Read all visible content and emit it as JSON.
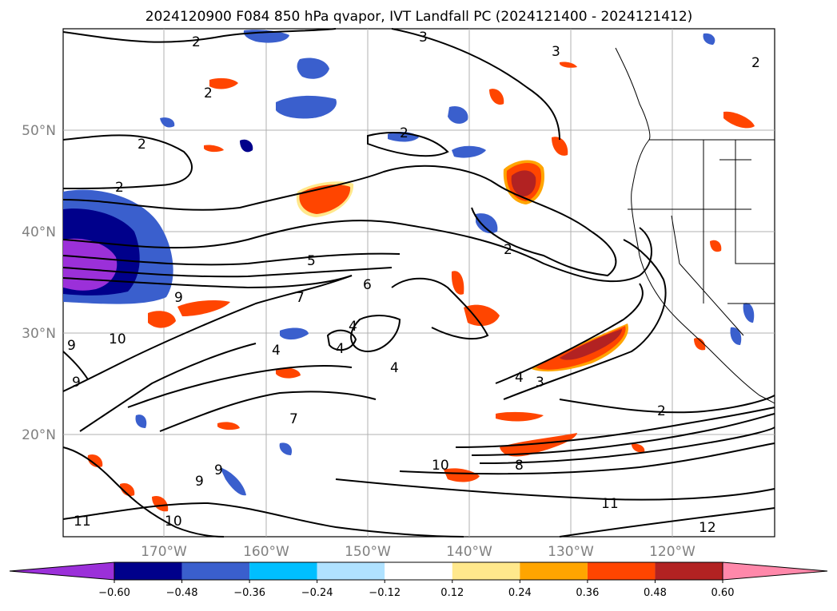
{
  "title": "2024120900 F084 850 hPa qvapor, IVT Landfall PC (2024121400 - 2024121412)",
  "latitude_labels": [
    "50°N",
    "40°N",
    "30°N",
    "20°N"
  ],
  "longitude_labels": [
    "170°W",
    "160°W",
    "150°W",
    "140°W",
    "130°W",
    "120°W"
  ],
  "colorbar": {
    "ticks": [
      "-0.60",
      "-0.48",
      "-0.36",
      "-0.24",
      "-0.12",
      "0.12",
      "0.24",
      "0.36",
      "0.48",
      "0.60"
    ],
    "colors": [
      "#9b30d9",
      "#00008b",
      "#3a5fcd",
      "#00bfff",
      "#b0e2ff",
      "#ffffff",
      "#ffe88c",
      "#ffa500",
      "#ff4500",
      "#b22222",
      "#ff88aa"
    ]
  },
  "contour_labels": [
    "3",
    "3",
    "2",
    "2",
    "2",
    "2",
    "2",
    "2",
    "5",
    "6",
    "7",
    "4",
    "4",
    "4",
    "4",
    "9",
    "10",
    "9",
    "9",
    "7",
    "2",
    "3",
    "4",
    "2",
    "8",
    "10",
    "11",
    "12",
    "11",
    "10",
    "9",
    "9"
  ],
  "map_features": {
    "coastlines": "North America west coast",
    "borders": "US-Canada border and US state borders",
    "gridlines": true
  }
}
